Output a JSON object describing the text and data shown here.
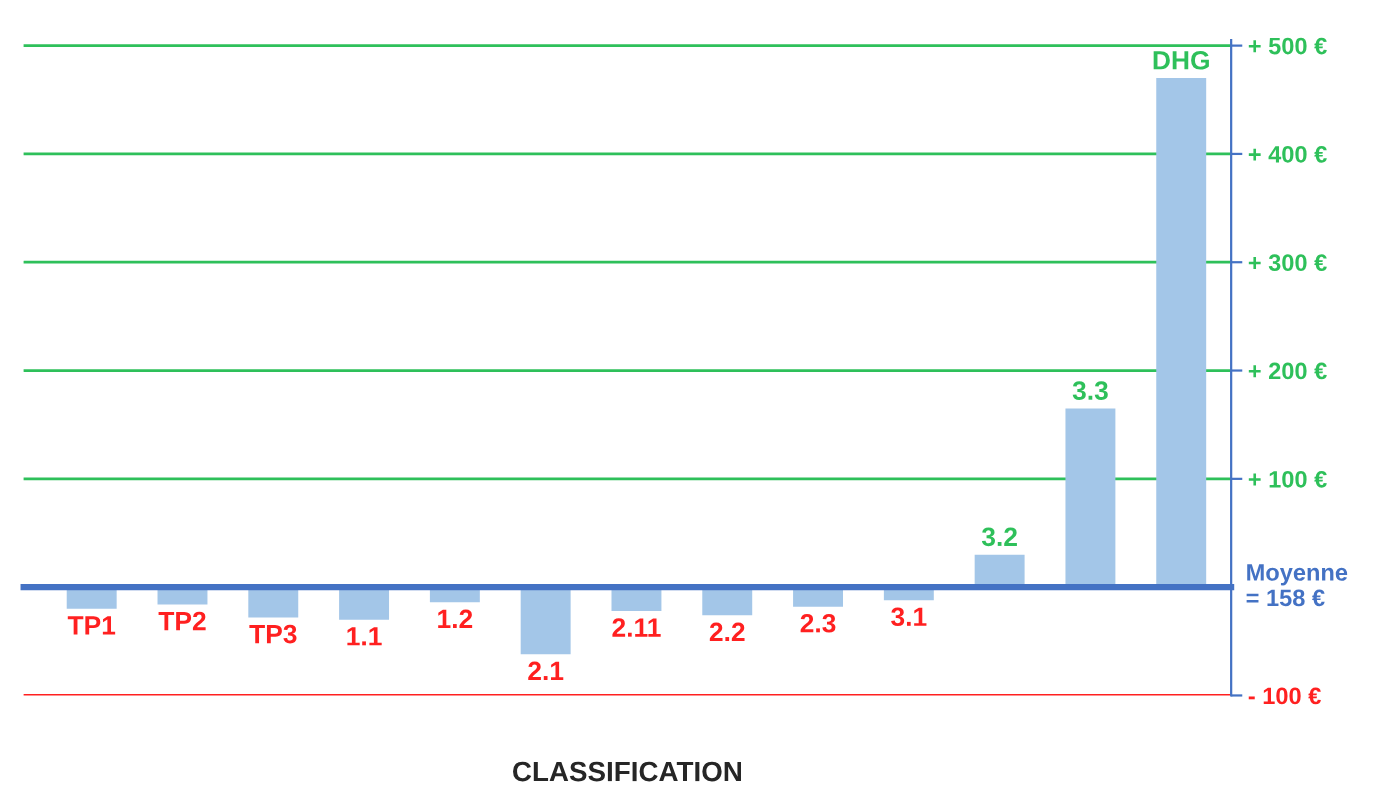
{
  "chart_data": {
    "type": "bar",
    "xlabel": "CLASSIFICATION",
    "categories": [
      "TP1",
      "TP2",
      "TP3",
      "1.1",
      "1.2",
      "2.1",
      "2.11",
      "2.2",
      "2.3",
      "3.1",
      "3.2",
      "3.3",
      "DHG"
    ],
    "values": [
      -20,
      -16,
      -28,
      -30,
      -14,
      -62,
      -22,
      -26,
      -18,
      -12,
      30,
      165,
      470
    ],
    "color": "#a3c6e8",
    "ylim": [
      -100,
      505
    ],
    "annotations": [
      "Moyenne\n= 158 €"
    ],
    "yticks": [
      {
        "value": -100,
        "label": "- 100 €"
      },
      {
        "value": 100,
        "label": "+ 100 €"
      },
      {
        "value": 200,
        "label": "+ 200 €"
      },
      {
        "value": 300,
        "label": "+ 300 €"
      },
      {
        "value": 400,
        "label": "+ 400 €"
      },
      {
        "value": 500,
        "label": "+ 500 €"
      }
    ],
    "ref_lines": [
      {
        "axis": "y",
        "value": -100,
        "color": "#ff2020"
      },
      {
        "axis": "y",
        "value": 100,
        "color": "#2ec05a"
      },
      {
        "axis": "y",
        "value": 200,
        "color": "#2ec05a"
      },
      {
        "axis": "y",
        "value": 300,
        "color": "#2ec05a"
      },
      {
        "axis": "y",
        "value": 400,
        "color": "#2ec05a"
      },
      {
        "axis": "y",
        "value": 500,
        "color": "#2ec05a"
      }
    ]
  }
}
